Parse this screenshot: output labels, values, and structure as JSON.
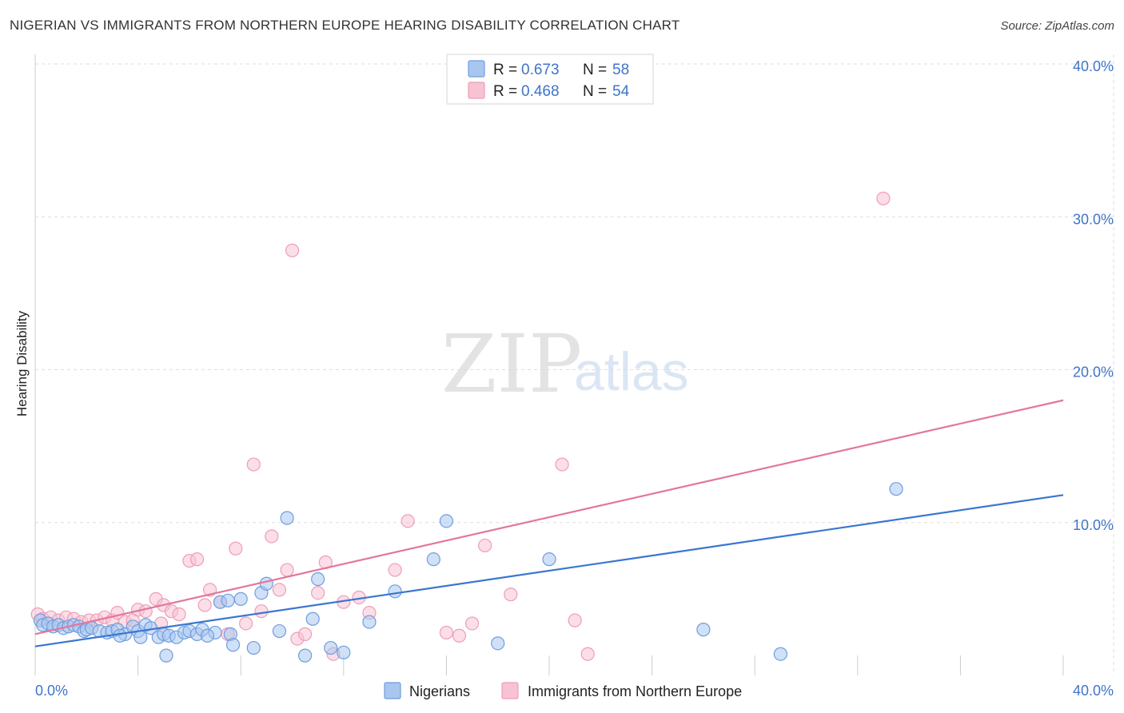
{
  "title": "NIGERIAN VS IMMIGRANTS FROM NORTHERN EUROPE HEARING DISABILITY CORRELATION CHART",
  "source": "Source: ZipAtlas.com",
  "watermark": {
    "zip": "ZIP",
    "atlas": "atlas"
  },
  "colors": {
    "blue": "#3a76d1",
    "blue_fill": "#a9c6ef",
    "blue_stroke": "#6e9ee0",
    "pink": "#e2779b",
    "pink_fill": "#f7c3d3",
    "pink_stroke": "#ee9db8",
    "axis_label": "#3f74c9",
    "grid": "#dddddd"
  },
  "legend": {
    "series": [
      {
        "r_label": "R =",
        "r_value": "0.673",
        "n_label": "N =",
        "n_value": "58"
      },
      {
        "r_label": "R =",
        "r_value": "0.468",
        "n_label": "N =",
        "n_value": "54"
      }
    ]
  },
  "bottom_legend": [
    "Nigerians",
    "Immigrants from Northern Europe"
  ],
  "chart_data": {
    "type": "scatter",
    "title": "NIGERIAN VS IMMIGRANTS FROM NORTHERN EUROPE HEARING DISABILITY CORRELATION CHART",
    "xlabel": "",
    "ylabel": "Hearing Disability",
    "xlim": [
      0,
      40
    ],
    "ylim": [
      0,
      40
    ],
    "x_tick_labels": [
      "0.0%",
      "40.0%"
    ],
    "y_ticks": [
      10,
      20,
      30,
      40
    ],
    "y_tick_labels": [
      "10.0%",
      "20.0%",
      "30.0%",
      "40.0%"
    ],
    "grid": true,
    "series": [
      {
        "name": "Nigerians",
        "r": 0.673,
        "n": 58,
        "trend": {
          "x0": 0,
          "y0": 1.9,
          "x1": 40,
          "y1": 11.8
        },
        "points": [
          [
            0.2,
            3.6
          ],
          [
            0.3,
            3.3
          ],
          [
            0.5,
            3.4
          ],
          [
            0.7,
            3.2
          ],
          [
            0.9,
            3.3
          ],
          [
            1.1,
            3.1
          ],
          [
            1.3,
            3.2
          ],
          [
            1.5,
            3.3
          ],
          [
            1.7,
            3.2
          ],
          [
            1.9,
            2.9
          ],
          [
            2.0,
            3.0
          ],
          [
            2.2,
            3.1
          ],
          [
            2.5,
            2.9
          ],
          [
            2.8,
            2.8
          ],
          [
            3.0,
            2.9
          ],
          [
            3.2,
            3.0
          ],
          [
            3.5,
            2.7
          ],
          [
            3.8,
            3.2
          ],
          [
            4.0,
            2.9
          ],
          [
            4.3,
            3.3
          ],
          [
            4.5,
            3.1
          ],
          [
            4.8,
            2.5
          ],
          [
            5.0,
            2.7
          ],
          [
            5.2,
            2.6
          ],
          [
            5.5,
            2.5
          ],
          [
            5.8,
            2.8
          ],
          [
            6.0,
            2.9
          ],
          [
            6.3,
            2.7
          ],
          [
            6.5,
            3.0
          ],
          [
            7.0,
            2.8
          ],
          [
            7.2,
            4.8
          ],
          [
            7.5,
            4.9
          ],
          [
            7.6,
            2.7
          ],
          [
            8.0,
            5.0
          ],
          [
            8.5,
            1.8
          ],
          [
            8.8,
            5.4
          ],
          [
            9.0,
            6.0
          ],
          [
            9.5,
            2.9
          ],
          [
            9.8,
            10.3
          ],
          [
            10.5,
            1.3
          ],
          [
            10.8,
            3.7
          ],
          [
            11.0,
            6.3
          ],
          [
            11.5,
            1.8
          ],
          [
            12.0,
            1.5
          ],
          [
            13.0,
            3.5
          ],
          [
            14.0,
            5.5
          ],
          [
            15.5,
            7.6
          ],
          [
            16.0,
            10.1
          ],
          [
            18.0,
            2.1
          ],
          [
            20.0,
            7.6
          ],
          [
            26.0,
            3.0
          ],
          [
            29.0,
            1.4
          ],
          [
            33.5,
            12.2
          ],
          [
            3.3,
            2.6
          ],
          [
            4.1,
            2.5
          ],
          [
            5.1,
            1.3
          ],
          [
            6.7,
            2.6
          ],
          [
            7.7,
            2.0
          ]
        ]
      },
      {
        "name": "Immigrants from Northern Europe",
        "r": 0.468,
        "n": 54,
        "trend": {
          "x0": 0,
          "y0": 2.7,
          "x1": 40,
          "y1": 18.0
        },
        "points": [
          [
            0.1,
            4.0
          ],
          [
            0.3,
            3.7
          ],
          [
            0.6,
            3.8
          ],
          [
            0.9,
            3.6
          ],
          [
            1.2,
            3.8
          ],
          [
            1.5,
            3.7
          ],
          [
            1.8,
            3.5
          ],
          [
            2.1,
            3.6
          ],
          [
            2.4,
            3.6
          ],
          [
            2.7,
            3.8
          ],
          [
            3.0,
            3.6
          ],
          [
            3.2,
            4.1
          ],
          [
            3.5,
            3.5
          ],
          [
            3.8,
            3.6
          ],
          [
            4.0,
            4.3
          ],
          [
            4.3,
            4.2
          ],
          [
            4.7,
            5.0
          ],
          [
            5.0,
            4.6
          ],
          [
            5.3,
            4.2
          ],
          [
            5.6,
            4.0
          ],
          [
            6.0,
            7.5
          ],
          [
            6.3,
            7.6
          ],
          [
            6.8,
            5.6
          ],
          [
            7.2,
            4.8
          ],
          [
            7.5,
            2.7
          ],
          [
            7.8,
            8.3
          ],
          [
            8.2,
            3.4
          ],
          [
            8.5,
            13.8
          ],
          [
            8.8,
            4.2
          ],
          [
            9.2,
            9.1
          ],
          [
            9.5,
            5.6
          ],
          [
            9.8,
            6.9
          ],
          [
            10.0,
            27.8
          ],
          [
            10.2,
            2.4
          ],
          [
            10.5,
            2.7
          ],
          [
            11.0,
            5.4
          ],
          [
            11.3,
            7.4
          ],
          [
            11.6,
            1.4
          ],
          [
            12.0,
            4.8
          ],
          [
            12.6,
            5.1
          ],
          [
            13.0,
            4.1
          ],
          [
            14.0,
            6.9
          ],
          [
            14.5,
            10.1
          ],
          [
            16.0,
            2.8
          ],
          [
            16.5,
            2.6
          ],
          [
            17.0,
            3.4
          ],
          [
            17.5,
            8.5
          ],
          [
            18.5,
            5.3
          ],
          [
            20.5,
            13.8
          ],
          [
            21.0,
            3.6
          ],
          [
            21.5,
            1.4
          ],
          [
            33.0,
            31.2
          ],
          [
            4.9,
            3.4
          ],
          [
            6.6,
            4.6
          ]
        ]
      }
    ]
  }
}
